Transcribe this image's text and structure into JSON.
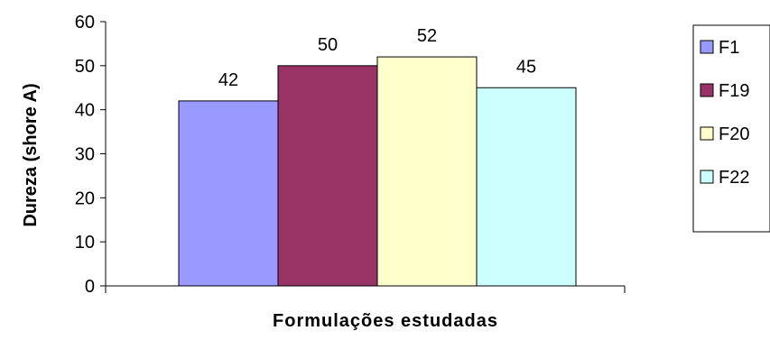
{
  "chart_data": {
    "type": "bar",
    "title": "",
    "xlabel": "Formulações estudadas",
    "ylabel": "Dureza (shore A)",
    "ylim": [
      0,
      60
    ],
    "yticks": [
      0,
      10,
      20,
      30,
      40,
      50,
      60
    ],
    "grid": false,
    "legend_position": "right",
    "series": [
      {
        "name": "F1",
        "value": 42,
        "color": "#9999FF"
      },
      {
        "name": "F19",
        "value": 50,
        "color": "#993366"
      },
      {
        "name": "F20",
        "value": 52,
        "color": "#FFFFCC"
      },
      {
        "name": "F22",
        "value": 45,
        "color": "#CCFFFF"
      }
    ]
  }
}
